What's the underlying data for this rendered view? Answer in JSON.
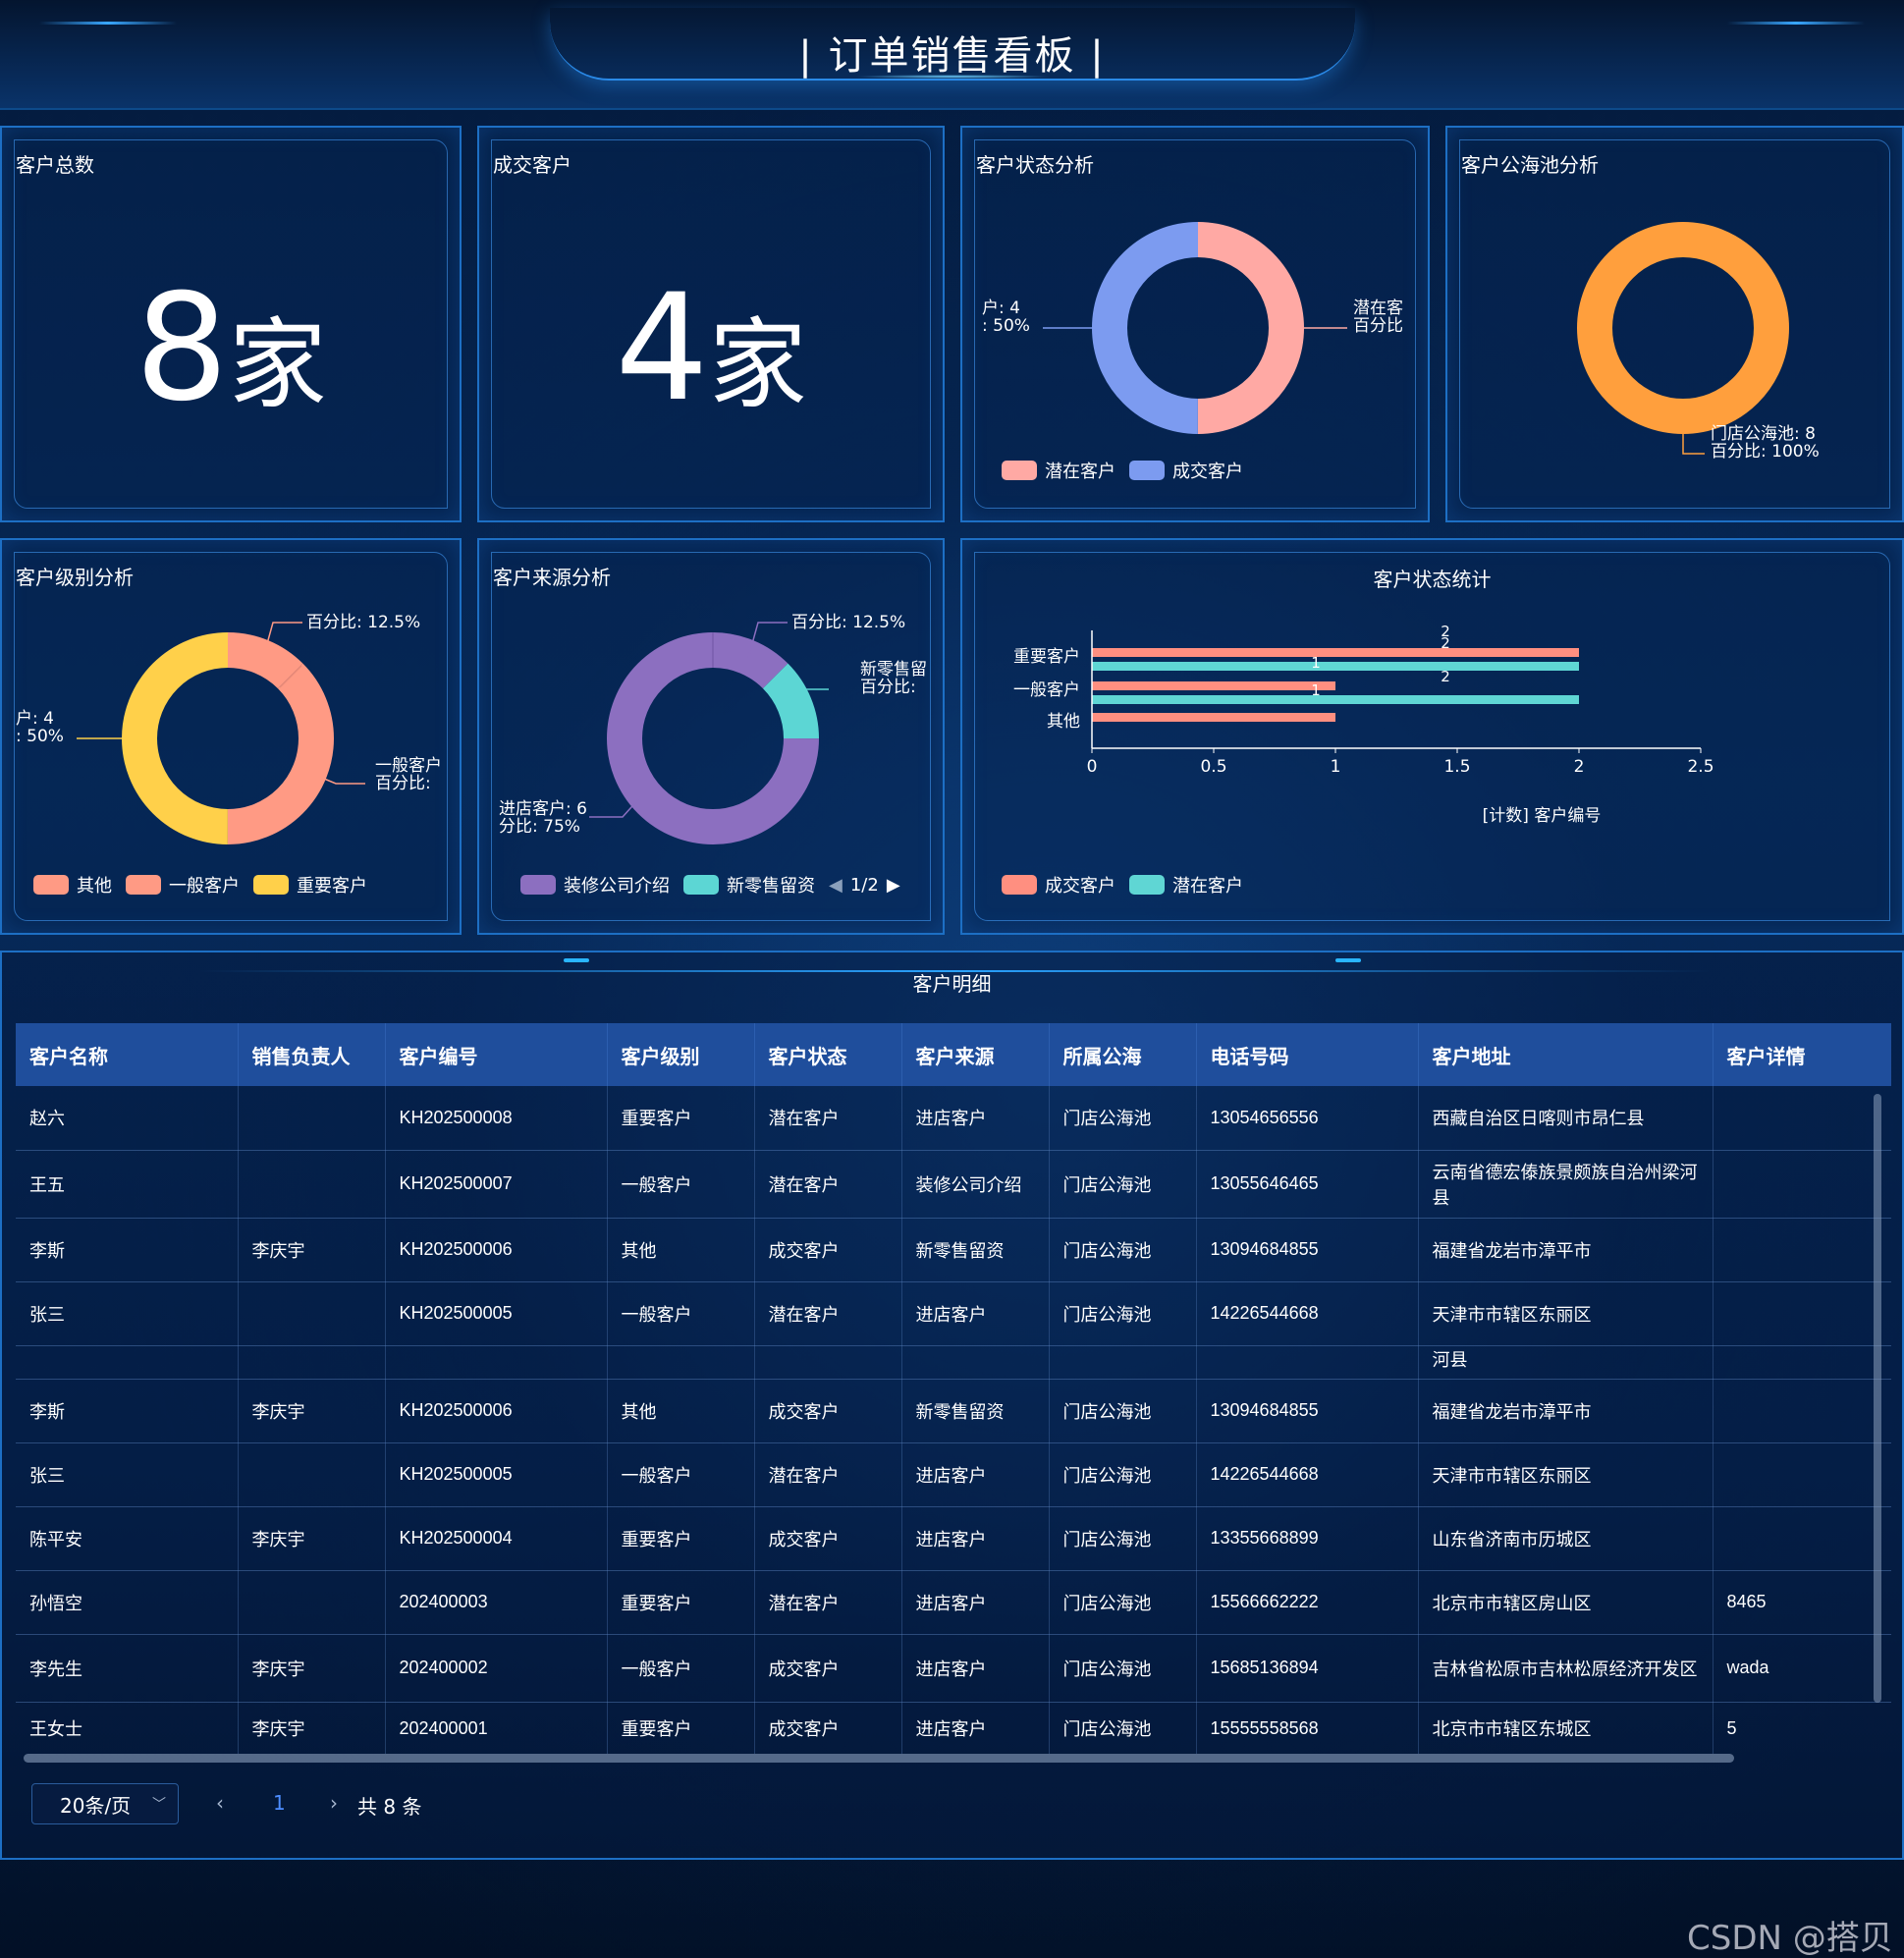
{
  "header": {
    "title": "| 订单销售看板 |"
  },
  "cards": {
    "total_customers": {
      "title": "客户总数",
      "value": "8",
      "unit": "家"
    },
    "closed_customers": {
      "title": "成交客户",
      "value": "4",
      "unit": "家"
    }
  },
  "status_analysis": {
    "title": "客户状态分析",
    "label_left_1": "户: 4",
    "label_left_2": ": 50%",
    "label_right_1": "潜在客",
    "label_right_2": "百分比",
    "legend": [
      {
        "name": "潜在客户",
        "color": "#ffa9a4"
      },
      {
        "name": "成交客户",
        "color": "#7c9bf0"
      }
    ],
    "chart_data": {
      "type": "pie",
      "categories": [
        "潜在客户",
        "成交客户"
      ],
      "values": [
        4,
        4
      ]
    }
  },
  "pool_analysis": {
    "title": "客户公海池分析",
    "label_1": "门店公海池: 8",
    "label_2": "百分比: 100%",
    "color": "#ff9f3d",
    "chart_data": {
      "type": "pie",
      "categories": [
        "门店公海池"
      ],
      "values": [
        8
      ]
    }
  },
  "level_analysis": {
    "title": "客户级别分析",
    "label_top": "百分比: 12.5%",
    "label_left_1": "户: 4",
    "label_left_2": ": 50%",
    "label_right_1": "一般客户",
    "label_right_2": "百分比:",
    "legend": [
      {
        "name": "其他",
        "color": "#ff9a84"
      },
      {
        "name": "一般客户",
        "color": "#ff9a84"
      },
      {
        "name": "重要客户",
        "color": "#ffd04a"
      }
    ],
    "chart_data": {
      "type": "pie",
      "categories": [
        "其他",
        "一般客户",
        "重要客户"
      ],
      "values": [
        1,
        3,
        4
      ]
    }
  },
  "source_analysis": {
    "title": "客户来源分析",
    "label_top": "百分比: 12.5%",
    "label_right_1": "新零售留",
    "label_right_2": "百分比:",
    "label_bottom_1": "进店客户: 6",
    "label_bottom_2": "分比: 75%",
    "legend": [
      {
        "name": "装修公司介绍",
        "color": "#8c6fc0"
      },
      {
        "name": "新零售留资",
        "color": "#5cd6d4"
      }
    ],
    "pager": "1/2",
    "chart_data": {
      "type": "pie",
      "categories": [
        "装修公司介绍",
        "新零售留资",
        "进店客户"
      ],
      "values": [
        1,
        1,
        6
      ]
    }
  },
  "status_stats": {
    "title": "客户状态统计",
    "xlabel": "[计数] 客户编号",
    "legend": [
      {
        "name": "成交客户",
        "color": "#ff8f80"
      },
      {
        "name": "潜在客户",
        "color": "#5fd6d4"
      }
    ],
    "chart_data": {
      "type": "bar",
      "orientation": "horizontal",
      "categories": [
        "重要客户",
        "一般客户",
        "其他"
      ],
      "series": [
        {
          "name": "成交客户",
          "values": [
            2,
            1,
            1
          ]
        },
        {
          "name": "潜在客户",
          "values": [
            2,
            2,
            null
          ]
        }
      ],
      "data_labels": [
        "2",
        "2",
        "1",
        "2",
        "1"
      ],
      "xticks": [
        "0",
        "0.5",
        "1",
        "1.5",
        "2",
        "2.5"
      ],
      "xlim": [
        0,
        2.5
      ]
    }
  },
  "detail": {
    "title": "客户明细",
    "columns": [
      "客户名称",
      "销售负责人",
      "客户编号",
      "客户级别",
      "客户状态",
      "客户来源",
      "所属公海",
      "电话号码",
      "客户地址",
      "客户详情"
    ],
    "rows": [
      [
        "赵六",
        "",
        "KH202500008",
        "重要客户",
        "潜在客户",
        "进店客户",
        "门店公海池",
        "13054656556",
        "西藏自治区日喀则市昂仁县",
        ""
      ],
      [
        "王五",
        "",
        "KH202500007",
        "一般客户",
        "潜在客户",
        "装修公司介绍",
        "门店公海池",
        "13055646465",
        "云南省德宏傣族景颇族自治州梁河县",
        ""
      ],
      [
        "李斯",
        "李庆宇",
        "KH202500006",
        "其他",
        "成交客户",
        "新零售留资",
        "门店公海池",
        "13094684855",
        "福建省龙岩市漳平市",
        ""
      ],
      [
        "张三",
        "",
        "KH202500005",
        "一般客户",
        "潜在客户",
        "进店客户",
        "门店公海池",
        "14226544668",
        "天津市市辖区东丽区",
        ""
      ],
      [
        "",
        "",
        "",
        "",
        "",
        "",
        "",
        "",
        "河县",
        ""
      ],
      [
        "李斯",
        "李庆宇",
        "KH202500006",
        "其他",
        "成交客户",
        "新零售留资",
        "门店公海池",
        "13094684855",
        "福建省龙岩市漳平市",
        ""
      ],
      [
        "张三",
        "",
        "KH202500005",
        "一般客户",
        "潜在客户",
        "进店客户",
        "门店公海池",
        "14226544668",
        "天津市市辖区东丽区",
        ""
      ],
      [
        "陈平安",
        "李庆宇",
        "KH202500004",
        "重要客户",
        "成交客户",
        "进店客户",
        "门店公海池",
        "13355668899",
        "山东省济南市历城区",
        ""
      ],
      [
        "孙悟空",
        "",
        "202400003",
        "重要客户",
        "潜在客户",
        "进店客户",
        "门店公海池",
        "15566662222",
        "北京市市辖区房山区",
        "8465"
      ],
      [
        "李先生",
        "李庆宇",
        "202400002",
        "一般客户",
        "成交客户",
        "进店客户",
        "门店公海池",
        "15685136894",
        "吉林省松原市吉林松原经济开发区",
        "wada"
      ],
      [
        "王女士",
        "李庆宇",
        "202400001",
        "重要客户",
        "成交客户",
        "进店客户",
        "门店公海池",
        "15555558568",
        "北京市市辖区东城区",
        "5"
      ]
    ]
  },
  "pagination": {
    "page_size": "20条/页",
    "current": "1",
    "total": "共 8 条"
  },
  "watermark": "CSDN @搭贝"
}
